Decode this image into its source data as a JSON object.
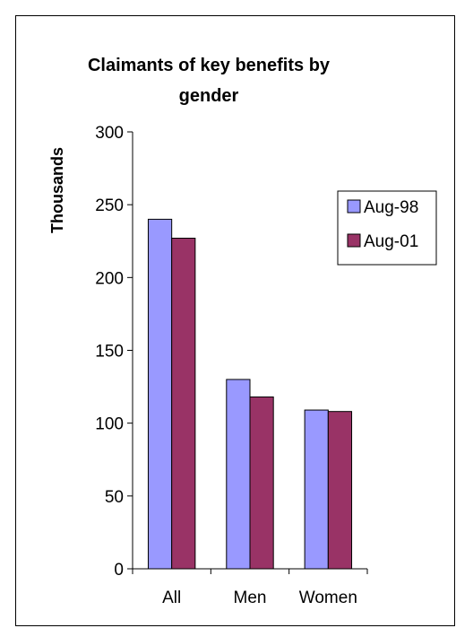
{
  "chart_data": {
    "type": "bar",
    "title_lines": [
      "Claimants of key benefits by",
      "gender"
    ],
    "ylabel": "Thousands",
    "xlabel": "",
    "categories": [
      "All",
      "Men",
      "Women"
    ],
    "series": [
      {
        "name": "Aug-98",
        "values": [
          240,
          130,
          109
        ],
        "color": "#9999ff"
      },
      {
        "name": "Aug-01",
        "values": [
          227,
          118,
          108
        ],
        "color": "#993366"
      }
    ],
    "ylim": [
      0,
      300
    ],
    "yticks": [
      0,
      50,
      100,
      150,
      200,
      250,
      300
    ],
    "grid": false,
    "legend_position": "right"
  }
}
